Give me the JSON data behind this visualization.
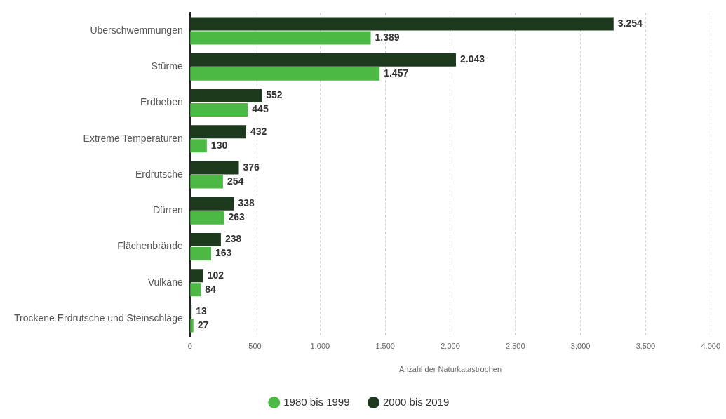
{
  "chart_data": {
    "type": "bar",
    "orientation": "horizontal",
    "xlabel": "Anzahl der Naturkatastrophen",
    "categories": [
      "Überschwemmungen",
      "Stürme",
      "Erdbeben",
      "Extreme Temperaturen",
      "Erdrutsche",
      "Dürren",
      "Flächenbrände",
      "Vulkane",
      "Trockene Erdrutsche und Steinschläge"
    ],
    "series": [
      {
        "name": "2000 bis 2019",
        "color": "#1e3a1e",
        "values": [
          3254,
          2043,
          552,
          432,
          376,
          338,
          238,
          102,
          13
        ],
        "value_labels": [
          "3.254",
          "2.043",
          "552",
          "432",
          "376",
          "338",
          "238",
          "102",
          "13"
        ]
      },
      {
        "name": "1980 bis 1999",
        "color": "#4cb944",
        "values": [
          1389,
          1457,
          445,
          130,
          254,
          263,
          163,
          84,
          27
        ],
        "value_labels": [
          "1.389",
          "1.457",
          "445",
          "130",
          "254",
          "263",
          "163",
          "84",
          "27"
        ]
      }
    ],
    "xlim": [
      0,
      4000
    ],
    "xticks": [
      0,
      500,
      {
        "value": 1000,
        "label": "1.000"
      },
      {
        "value": 1500,
        "label": "1.500"
      },
      {
        "value": 2000,
        "label": "2.000"
      },
      {
        "value": 2500,
        "label": "2.500"
      },
      {
        "value": 3000,
        "label": "3.000"
      },
      {
        "value": 3500,
        "label": "3.500"
      },
      {
        "value": 4000,
        "label": "4.000"
      }
    ],
    "grid": "x",
    "legend": "bottom"
  }
}
